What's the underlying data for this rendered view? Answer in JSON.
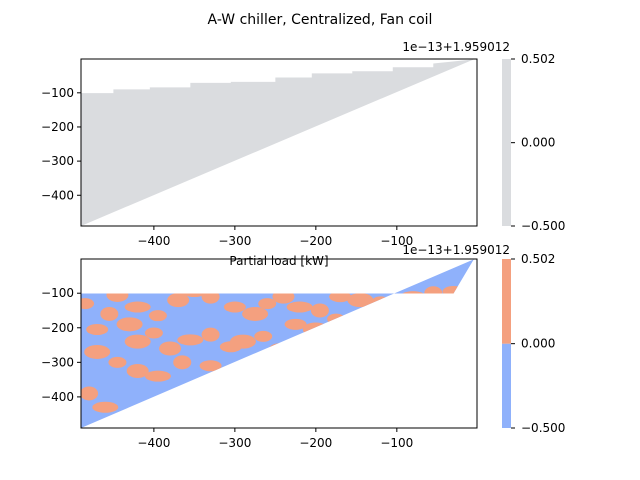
{
  "figure": {
    "title": "A-W chiller, Centralized, Fan coil"
  },
  "colors": {
    "upper_fill": "#dadcdf",
    "lower_low": "#8fb1fb",
    "lower_high": "#f4a07f",
    "axis": "#000000",
    "background": "#ffffff"
  },
  "chart_data": [
    {
      "type": "heatmap",
      "description_kind": "filled contour over triangular domain",
      "xlabel": "Partial load [kW]",
      "ylabel": "",
      "xlim": [
        -490,
        -1
      ],
      "ylim": [
        -490,
        -1
      ],
      "xticks": [
        "−400",
        "−300",
        "−200",
        "−100"
      ],
      "xtick_values": [
        -400,
        -300,
        -200,
        -100
      ],
      "yticks": [
        "−100",
        "−200",
        "−300",
        "−400"
      ],
      "ytick_values": [
        -100,
        -200,
        -300,
        -400
      ],
      "offset_label": "1e−13+1.959012",
      "colorbar": {
        "ticks": [
          "0.502",
          "0.000",
          "−0.500"
        ],
        "tick_values": [
          0.502,
          0.0,
          -0.5
        ],
        "levels": [
          -0.5,
          0.502
        ],
        "colors": [
          "#dadcdf"
        ]
      },
      "step_edge_points": [
        [
          -490,
          -101
        ],
        [
          -450,
          -101
        ],
        [
          -450,
          -90
        ],
        [
          -405,
          -90
        ],
        [
          -405,
          -84
        ],
        [
          -355,
          -84
        ],
        [
          -355,
          -71
        ],
        [
          -305,
          -71
        ],
        [
          -305,
          -68
        ],
        [
          -250,
          -68
        ],
        [
          -250,
          -55
        ],
        [
          -205,
          -55
        ],
        [
          -205,
          -43
        ],
        [
          -155,
          -43
        ],
        [
          -155,
          -37
        ],
        [
          -105,
          -37
        ],
        [
          -105,
          -25
        ],
        [
          -55,
          -25
        ],
        [
          -55,
          -14
        ],
        [
          -5,
          -2
        ]
      ]
    },
    {
      "type": "heatmap",
      "description_kind": "filled contour over triangular domain",
      "xlabel": "",
      "ylabel": "",
      "xlim": [
        -490,
        -1
      ],
      "ylim": [
        -490,
        -1
      ],
      "xticks": [
        "−400",
        "−300",
        "−200",
        "−100"
      ],
      "xtick_values": [
        -400,
        -300,
        -200,
        -100
      ],
      "yticks": [
        "−100",
        "−200",
        "−300",
        "−400"
      ],
      "ytick_values": [
        -100,
        -200,
        -300,
        -400
      ],
      "offset_label": "1e−13+1.959012",
      "colorbar": {
        "ticks": [
          "0.502",
          "0.000",
          "−0.500"
        ],
        "tick_values": [
          0.502,
          0.0,
          -0.5
        ],
        "levels": [
          -0.5,
          0.0,
          0.502
        ],
        "colors": [
          "#8fb1fb",
          "#f4a07f"
        ]
      },
      "high_regions": [
        [
          -485,
          -130
        ],
        [
          -445,
          -105
        ],
        [
          -420,
          -140
        ],
        [
          -455,
          -160
        ],
        [
          -470,
          -205
        ],
        [
          -430,
          -190
        ],
        [
          -395,
          -165
        ],
        [
          -370,
          -120
        ],
        [
          -350,
          -95
        ],
        [
          -330,
          -110
        ],
        [
          -300,
          -140
        ],
        [
          -275,
          -160
        ],
        [
          -260,
          -130
        ],
        [
          -240,
          -110
        ],
        [
          -220,
          -140
        ],
        [
          -195,
          -150
        ],
        [
          -170,
          -110
        ],
        [
          -145,
          -120
        ],
        [
          -120,
          -125
        ],
        [
          -100,
          -135
        ],
        [
          -80,
          -110
        ],
        [
          -55,
          -100
        ],
        [
          -30,
          -95
        ],
        [
          -420,
          -240
        ],
        [
          -400,
          -215
        ],
        [
          -380,
          -260
        ],
        [
          -355,
          -235
        ],
        [
          -330,
          -220
        ],
        [
          -305,
          -255
        ],
        [
          -470,
          -270
        ],
        [
          -445,
          -300
        ],
        [
          -420,
          -325
        ],
        [
          -395,
          -340
        ],
        [
          -365,
          -300
        ],
        [
          -330,
          -310
        ],
        [
          -290,
          -240
        ],
        [
          -265,
          -225
        ],
        [
          -245,
          -265
        ],
        [
          -460,
          -430
        ],
        [
          -480,
          -390
        ],
        [
          -225,
          -190
        ],
        [
          -200,
          -205
        ],
        [
          -175,
          -175
        ],
        [
          -150,
          -185
        ]
      ]
    }
  ]
}
